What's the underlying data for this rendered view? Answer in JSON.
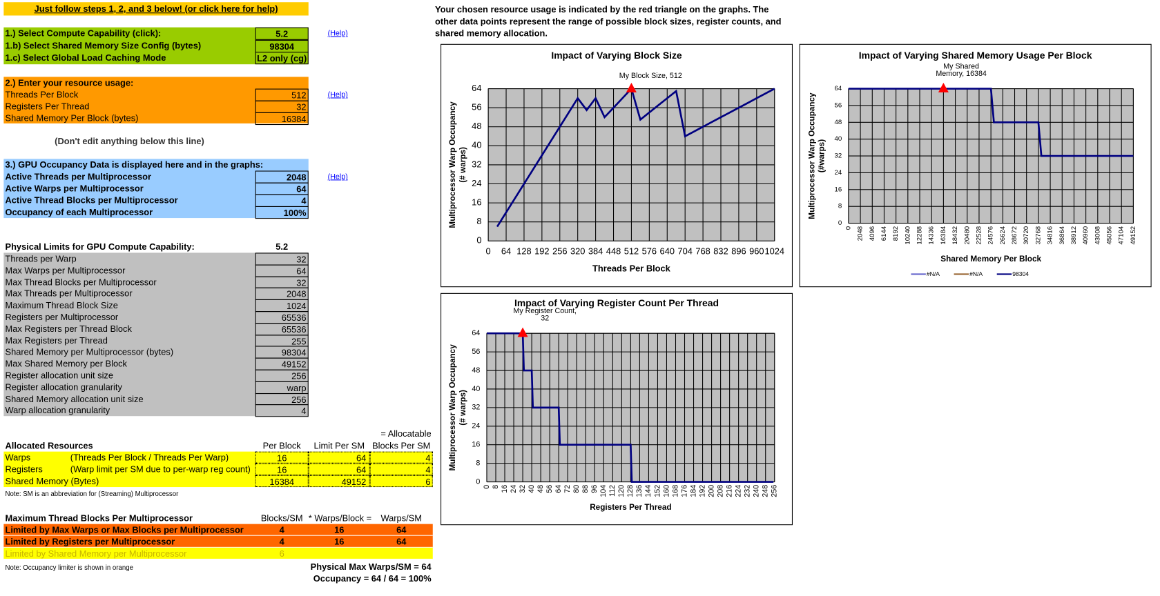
{
  "banner": "Just follow steps 1, 2, and 3 below! (or click here for help)",
  "help": "(Help)",
  "step1": {
    "rows": [
      [
        "1.) Select Compute Capability (click):",
        5.2
      ],
      [
        "1.b) Select Shared Memory Size Config (bytes)",
        98304
      ],
      [
        "1.c) Select Global Load Caching Mode",
        "L2 only (cg)"
      ]
    ]
  },
  "step2": {
    "title": "2.) Enter your resource usage:",
    "rows": [
      [
        "Threads Per Block",
        512
      ],
      [
        "Registers Per Thread",
        32
      ],
      [
        "Shared Memory Per Block (bytes)",
        16384
      ]
    ]
  },
  "divider": "(Don't edit anything below this line)",
  "step3": {
    "title": "3.) GPU Occupancy Data is displayed here and in the graphs:",
    "rows": [
      [
        "Active Threads per Multiprocessor",
        2048
      ],
      [
        "Active Warps per Multiprocessor",
        64
      ],
      [
        "Active Thread Blocks per Multiprocessor",
        4
      ],
      [
        "Occupancy of each Multiprocessor",
        "100%"
      ]
    ]
  },
  "limits": {
    "title": "Physical Limits for GPU Compute Capability:",
    "capability": 5.2,
    "rows": [
      [
        "Threads per Warp",
        32
      ],
      [
        "Max Warps per Multiprocessor",
        64
      ],
      [
        "Max Thread Blocks per Multiprocessor",
        32
      ],
      [
        "Max Threads per Multiprocessor",
        2048
      ],
      [
        "Maximum Thread Block Size",
        1024
      ],
      [
        "Registers per Multiprocessor",
        65536
      ],
      [
        "Max Registers per Thread Block",
        65536
      ],
      [
        "Max Registers per Thread",
        255
      ],
      [
        "Shared Memory per Multiprocessor (bytes)",
        98304
      ],
      [
        "Max Shared Memory per Block",
        49152
      ],
      [
        "Register allocation unit size",
        256
      ],
      [
        "Register allocation granularity",
        "warp"
      ],
      [
        "Shared Memory allocation unit size",
        256
      ],
      [
        "Warp allocation granularity",
        4
      ]
    ]
  },
  "allocated": {
    "note_top": "= Allocatable",
    "headers": [
      "Allocated Resources",
      "Per Block",
      "Limit Per SM",
      "Blocks Per SM"
    ],
    "rows": [
      {
        "name": "Warps",
        "desc": "(Threads Per Block / Threads Per Warp)",
        "per_block": 16,
        "limit": 64,
        "blocks": 4
      },
      {
        "name": "Registers",
        "desc": "(Warp limit per SM due to per-warp reg count)",
        "per_block": 16,
        "limit": 64,
        "blocks": 4
      },
      {
        "name": "Shared Memory (Bytes)",
        "per_block": 16384,
        "limit": 49152,
        "blocks": 6
      }
    ]
  },
  "note1": "Note: SM is an abbreviation for (Streaming) Multiprocessor",
  "max_blocks": {
    "headers": [
      "Maximum Thread Blocks Per Multiprocessor",
      "Blocks/SM",
      "* Warps/Block =",
      "Warps/SM"
    ],
    "rows": [
      {
        "name": "Limited by Max Warps or Max Blocks per Multiprocessor",
        "blocks": 4,
        "warps_per_block": 16,
        "warps": 64
      },
      {
        "name": "Limited by Registers per Multiprocessor",
        "blocks": 4,
        "warps_per_block": 16,
        "warps": 64
      },
      {
        "name": "Limited by Shared Memory per Multiprocessor",
        "blocks": 6
      }
    ]
  },
  "note2": "Note: Occupancy limiter is shown in orange",
  "summary": [
    "Physical Max Warps/SM = 64",
    "Occupancy = 64 / 64 = 100%"
  ],
  "graph_note": [
    "Your chosen resource usage is indicated by the red triangle on the graphs.  The",
    "other data points represent the range of possible block sizes, register counts, and",
    "shared memory allocation."
  ],
  "chart_data": [
    {
      "type": "line",
      "title": "Impact of Varying Block Size",
      "x_label": "Threads Per Block",
      "y_label": [
        "Multiprocessor Warp Occupancy",
        "(# warps)"
      ],
      "x": [
        32,
        64,
        96,
        128,
        160,
        192,
        224,
        256,
        288,
        320,
        352,
        384,
        416,
        448,
        480,
        512,
        544,
        576,
        608,
        640,
        672,
        704,
        736,
        768,
        800,
        832,
        864,
        896,
        928,
        960,
        992,
        1024
      ],
      "series": [
        {
          "color": "#000080",
          "values": [
            6,
            12,
            18,
            24,
            30,
            36,
            42,
            48,
            54,
            60,
            55,
            60,
            52,
            56,
            60,
            64,
            51,
            54,
            57,
            60,
            63,
            44,
            46,
            48,
            50,
            52,
            54,
            56,
            58,
            60,
            62,
            64
          ]
        }
      ],
      "xlim": [
        0,
        1024
      ],
      "xticks": [
        0,
        64,
        128,
        192,
        256,
        320,
        384,
        448,
        512,
        576,
        640,
        704,
        768,
        832,
        896,
        960,
        1024
      ],
      "ylim": [
        0,
        64
      ],
      "yticks": [
        0,
        8,
        16,
        24,
        32,
        40,
        48,
        56,
        64
      ],
      "grid": true,
      "marker": {
        "x": 512,
        "y": 64,
        "label": [
          "My Block Size, 512"
        ],
        "color": "#ff0000"
      }
    },
    {
      "type": "line",
      "title": "Impact of Varying Shared Memory Usage Per Block",
      "x_label": "Shared Memory Per Block",
      "y_label": [
        "Multiprocessor Warp Occupancy",
        "(#warps)"
      ],
      "x": [
        0,
        24576,
        25088,
        32768,
        33280,
        49152
      ],
      "series": [
        {
          "name": "#N/A",
          "color": "#6666cc",
          "values": [
            null,
            null,
            null,
            null,
            null,
            null
          ]
        },
        {
          "name": "#N/A",
          "color": "#996633",
          "values": [
            null,
            null,
            null,
            null,
            null,
            null
          ]
        },
        {
          "name": "98304",
          "color": "#000080",
          "values": [
            64,
            64,
            48,
            48,
            32,
            32
          ]
        }
      ],
      "xlim": [
        0,
        49152
      ],
      "xticks": [
        0,
        2048,
        4096,
        6144,
        8192,
        10240,
        12288,
        14336,
        16384,
        18432,
        20480,
        22528,
        24576,
        26624,
        28672,
        30720,
        32768,
        34816,
        36864,
        38912,
        40960,
        43008,
        45056,
        47104,
        49152
      ],
      "ylim": [
        0,
        64
      ],
      "yticks": [
        0,
        8,
        16,
        24,
        32,
        40,
        48,
        56,
        64
      ],
      "grid": true,
      "legend": "bottom",
      "marker": {
        "x": 16384,
        "y": 64,
        "label": [
          "My Shared",
          "Memory, 16384"
        ],
        "color": "#ff0000"
      }
    },
    {
      "type": "line",
      "title": "Impact of Varying Register Count Per Thread",
      "x_label": "Registers Per Thread",
      "y_label": [
        "Multiprocessor Warp Occupancy",
        "(# warps)"
      ],
      "x": [
        0,
        32,
        33,
        40,
        41,
        64,
        65,
        128,
        129,
        255
      ],
      "series": [
        {
          "color": "#000080",
          "values": [
            64,
            64,
            48,
            48,
            32,
            32,
            16,
            16,
            0,
            0
          ]
        }
      ],
      "xlim": [
        0,
        256
      ],
      "xticks": [
        0,
        8,
        16,
        24,
        32,
        40,
        48,
        56,
        64,
        72,
        80,
        88,
        96,
        104,
        112,
        120,
        128,
        136,
        144,
        152,
        160,
        168,
        176,
        184,
        192,
        200,
        208,
        216,
        224,
        232,
        240,
        248,
        256
      ],
      "ylim": [
        0,
        64
      ],
      "yticks": [
        0,
        8,
        16,
        24,
        32,
        40,
        48,
        56,
        64
      ],
      "grid": true,
      "marker": {
        "x": 32,
        "y": 64,
        "label": [
          "My Register Count,",
          "32"
        ],
        "color": "#ff0000"
      }
    }
  ]
}
